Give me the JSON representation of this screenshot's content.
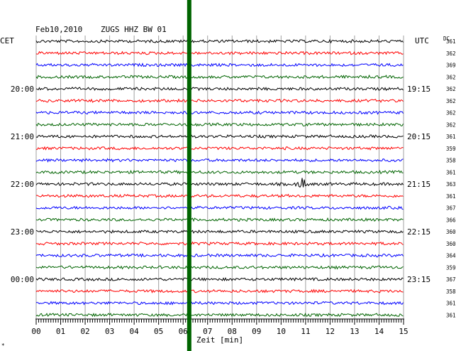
{
  "chart_data": {
    "type": "line",
    "title": "Feb10,2010   ZUGS HHZ BW 01",
    "date": "Feb10,2010",
    "station": "ZUGS HHZ BW 01",
    "left_timezone": "CET",
    "right_timezone": "UTC",
    "dc_label": "DC",
    "xlabel": "Zeit [min]",
    "x_ticks": [
      "00",
      "01",
      "02",
      "03",
      "04",
      "05",
      "06",
      "07",
      "08",
      "09",
      "10",
      "11",
      "12",
      "13",
      "14",
      "15"
    ],
    "xlim": [
      0,
      15
    ],
    "left_hour_labels": [
      {
        "row": 4,
        "text": "20:00"
      },
      {
        "row": 8,
        "text": "21:00"
      },
      {
        "row": 12,
        "text": "22:00"
      },
      {
        "row": 16,
        "text": "23:00"
      },
      {
        "row": 20,
        "text": "00:00"
      }
    ],
    "right_hour_labels": [
      {
        "row": 4,
        "text": "19:15"
      },
      {
        "row": 8,
        "text": "20:15"
      },
      {
        "row": 12,
        "text": "21:15"
      },
      {
        "row": 16,
        "text": "22:15"
      },
      {
        "row": 20,
        "text": "23:15"
      }
    ],
    "trace_colors": [
      "#000000",
      "#ff0000",
      "#0000ff",
      "#006400"
    ],
    "dc_values": [
      "361",
      "362",
      "369",
      "362",
      "362",
      "362",
      "362",
      "362",
      "361",
      "359",
      "358",
      "361",
      "363",
      "361",
      "367",
      "366",
      "360",
      "360",
      "364",
      "359",
      "367",
      "358",
      "361",
      "361"
    ],
    "marker_minute": 6.25,
    "marker_color": "#006400",
    "events": [
      {
        "row": 12,
        "minute": 10.85,
        "amplitude": 2.5
      }
    ],
    "footer_mark": "*"
  }
}
